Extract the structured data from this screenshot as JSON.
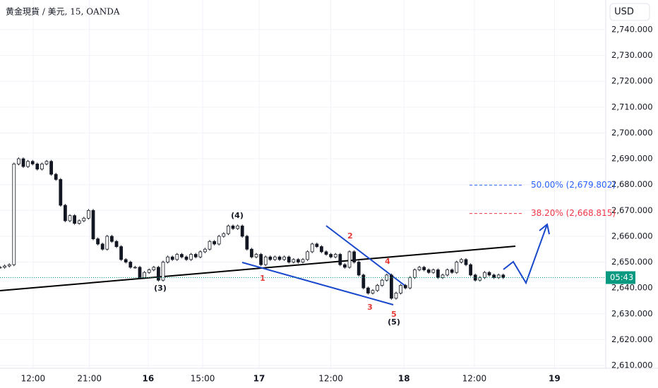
{
  "chart_data": {
    "type": "candlestick",
    "title": "黄金現貨 / 美元, 15, OANDA",
    "currency": "USD",
    "countdown": "05:43",
    "xlim": [
      0,
      130
    ],
    "xticks": [
      {
        "value": 7.1,
        "label": "12:00"
      },
      {
        "value": 19.2,
        "label": "21:00"
      },
      {
        "value": 31.8,
        "label": "16"
      },
      {
        "value": 43.5,
        "label": "15:00"
      },
      {
        "value": 55.6,
        "label": "17"
      },
      {
        "value": 71,
        "label": "12:00"
      },
      {
        "value": 86.7,
        "label": "18"
      },
      {
        "value": 101.8,
        "label": "12:00"
      },
      {
        "value": 119,
        "label": "19"
      }
    ],
    "ylim": [
      2610,
      2740
    ],
    "yticks": [
      {
        "value": 2610,
        "label": "2,610.000"
      },
      {
        "value": 2620,
        "label": "2,620.000"
      },
      {
        "value": 2630,
        "label": "2,630.000"
      },
      {
        "value": 2640,
        "label": "2,640.000"
      },
      {
        "value": 2650,
        "label": "2,650.000"
      },
      {
        "value": 2660,
        "label": "2,660.000"
      },
      {
        "value": 2670,
        "label": "2,670.000"
      },
      {
        "value": 2680,
        "label": "2,680.000"
      },
      {
        "value": 2690,
        "label": "2,690.000"
      },
      {
        "value": 2700,
        "label": "2,700.000"
      },
      {
        "value": 2710,
        "label": "2,710.000"
      },
      {
        "value": 2720,
        "label": "2,720.000"
      },
      {
        "value": 2730,
        "label": "2,730.000"
      },
      {
        "value": 2740,
        "label": "2,740.000"
      }
    ],
    "grid": true,
    "color": "#131722",
    "values": [
      2648,
      2648.5,
      2649,
      2688,
      2690,
      2687,
      2689,
      2688,
      2686,
      2688,
      2689,
      2684,
      2682,
      2672,
      2666,
      2668,
      2665,
      2666,
      2667,
      2670,
      2659,
      2657,
      2655,
      2660,
      2658,
      2656,
      2651,
      2650,
      2648,
      2648,
      2644,
      2646,
      2647,
      2648,
      2643,
      2650,
      2652,
      2651,
      2653,
      2652,
      2651,
      2653,
      2652,
      2654,
      2655,
      2658,
      2657,
      2660,
      2661,
      2664,
      2663,
      2664,
      2660,
      2655,
      2652,
      2653,
      2649,
      2652,
      2651,
      2652,
      2651,
      2652,
      2650,
      2651,
      2650,
      2651,
      2654,
      2657,
      2656,
      2654,
      2653,
      2652,
      2653,
      2649,
      2648,
      2654,
      2650,
      2645,
      2640,
      2638,
      2639,
      2641,
      2643,
      2645,
      2636,
      2638,
      2641,
      2640,
      2644,
      2647,
      2648,
      2647,
      2646,
      2647,
      2644,
      2645,
      2647,
      2646,
      2650,
      2651,
      2649,
      2645,
      2643,
      2644,
      2646,
      2645,
      2644,
      2645,
      2644
    ],
    "last_price_color": "#089981",
    "fib_levels": [
      {
        "label": "50.00% (2,679.802)",
        "value": 2679.802,
        "color": "#2962ff"
      },
      {
        "label": "38.20% (2,668.815)",
        "value": 2668.815,
        "color": "#f23645"
      }
    ],
    "wave_labels": [
      "(3)",
      "(4)",
      "(5)"
    ],
    "subwave_labels": [
      "1",
      "2",
      "3",
      "4",
      "5"
    ]
  }
}
